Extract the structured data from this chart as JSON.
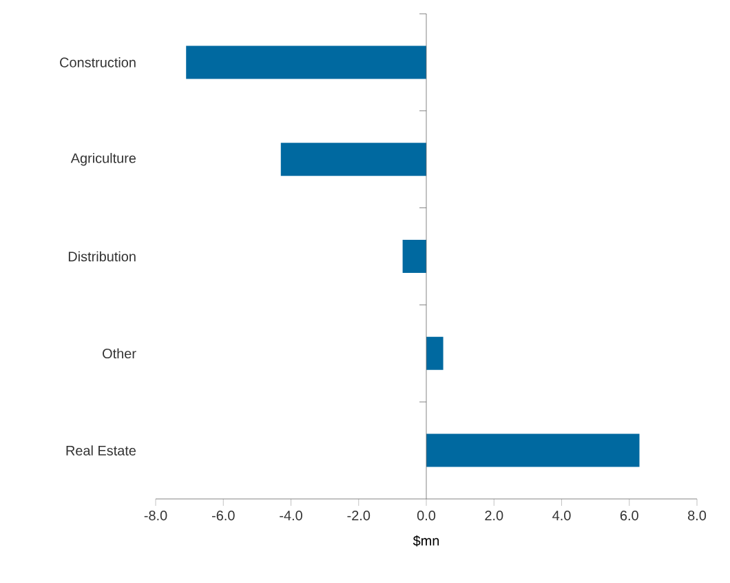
{
  "chart_data": {
    "type": "bar",
    "orientation": "horizontal",
    "categories": [
      "Construction",
      "Agriculture",
      "Distribution",
      "Other",
      "Real Estate"
    ],
    "values": [
      -7.1,
      -4.3,
      -0.7,
      0.5,
      6.3
    ],
    "color": "#0069a0",
    "xlabel": "$mn",
    "xlim": [
      -8,
      8
    ],
    "xticks": [
      {
        "value": -8,
        "label": "-8.0"
      },
      {
        "value": -6,
        "label": "-6.0"
      },
      {
        "value": -4,
        "label": "-4.0"
      },
      {
        "value": -2,
        "label": "-2.0"
      },
      {
        "value": 0,
        "label": "0.0"
      },
      {
        "value": 2,
        "label": "2.0"
      },
      {
        "value": 4,
        "label": "4.0"
      },
      {
        "value": 6,
        "label": "6.0"
      },
      {
        "value": 8,
        "label": "8.0"
      }
    ]
  }
}
